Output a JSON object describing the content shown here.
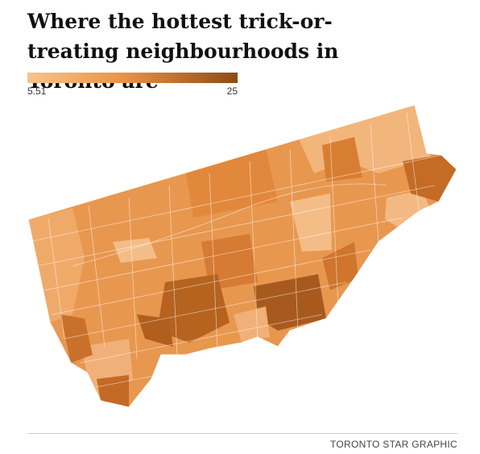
{
  "title": "Where the hottest trick-or-treating neighbourhoods in Toronto are",
  "legend": {
    "min": 5.51,
    "max": 25
  },
  "credit": "TORONTO STAR GRAPHIC"
}
